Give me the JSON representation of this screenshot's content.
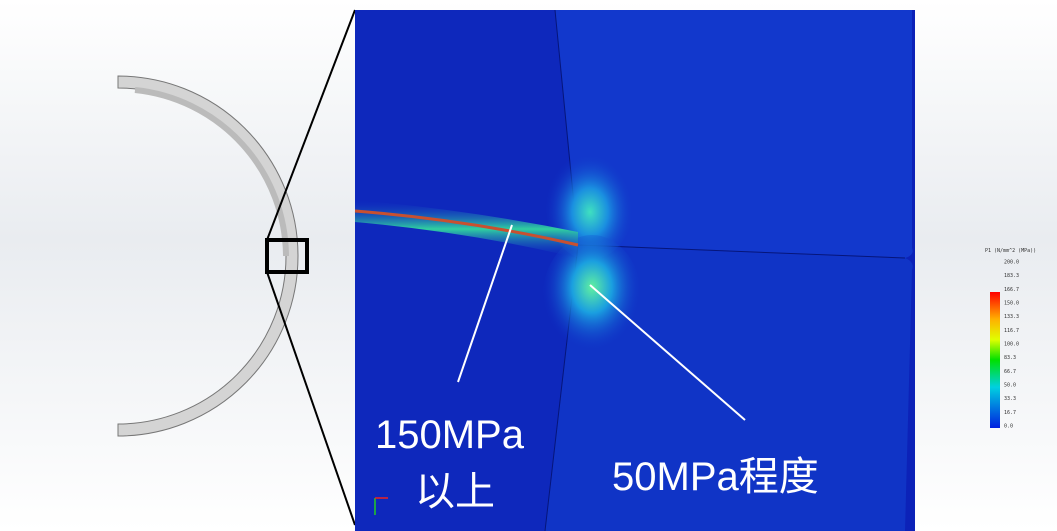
{
  "annotations": {
    "high": [
      "150MPa",
      "以上"
    ],
    "mid": "50MPa程度"
  },
  "legend": {
    "title": "P1 (N/mm^2 (MPa))",
    "ticks": [
      "200.0",
      "183.3",
      "166.7",
      "150.0",
      "133.3",
      "116.7",
      "100.0",
      "83.3",
      "66.7",
      "50.0",
      "33.3",
      "16.7",
      "0.0"
    ]
  }
}
